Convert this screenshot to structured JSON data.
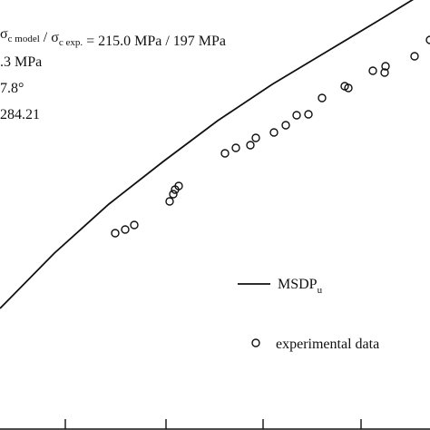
{
  "chart_data": {
    "type": "scatter",
    "annotations": [
      "σc model / σc exp. = 215.0 MPa / 197 MPa",
      ".3 MPa",
      "7.8°",
      "284.21"
    ],
    "xlim": [
      0,
      474
    ],
    "ylim": [
      0,
      474
    ],
    "series": [
      {
        "name": "MSDPu",
        "kind": "line",
        "x": [
          0,
          60,
          120,
          180,
          240,
          300,
          360,
          420,
          474
        ],
        "y": [
          134,
          195,
          249,
          296,
          341,
          381,
          417,
          453,
          486
        ]
      },
      {
        "name": "experimental data",
        "kind": "scatter",
        "x": [
          127,
          138,
          148,
          187,
          191,
          193,
          197,
          248,
          260,
          276,
          282,
          302,
          315,
          327,
          340,
          355,
          380,
          384,
          411,
          424,
          425,
          457,
          474
        ],
        "y": [
          217,
          221,
          226,
          252,
          260,
          265,
          269,
          305,
          311,
          314,
          322,
          328,
          336,
          347,
          348,
          366,
          379,
          377,
          396,
          394,
          401,
          412,
          430
        ]
      }
    ],
    "legend": [
      {
        "marker": "line",
        "label": "MSDP",
        "sub": "u"
      },
      {
        "marker": "circle",
        "label": "experimental data"
      }
    ],
    "xticks": [
      72,
      183,
      290,
      398
    ]
  }
}
